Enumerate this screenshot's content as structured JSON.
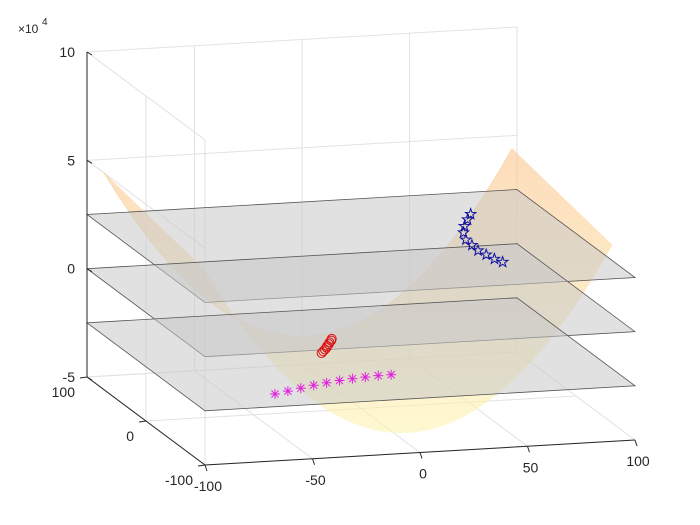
{
  "chart_data": {
    "type": "surface",
    "title": "",
    "xlabel": "",
    "ylabel": "",
    "zlabel": "",
    "x_ticks": [
      "-100",
      "-50",
      "0",
      "50",
      "100"
    ],
    "y_ticks": [
      "-100",
      "0",
      "100"
    ],
    "z_ticks": [
      "-5",
      "0",
      "5",
      "10"
    ],
    "z_exponent_label": "×10",
    "z_exponent_power": "4",
    "xlim": [
      -100,
      100
    ],
    "ylim": [
      -100,
      100
    ],
    "zlim": [
      -50000,
      100000
    ],
    "grid": true,
    "surface": {
      "function": "saddle",
      "colors": [
        "#fdf3b0",
        "#fbc58e"
      ],
      "opacity": 0.6
    },
    "planes": [
      {
        "z": 25000,
        "color": "#c8c8c8"
      },
      {
        "z": 0,
        "color": "#c8c8c8"
      },
      {
        "z": -25000,
        "color": "#c8c8c8"
      }
    ],
    "series": [
      {
        "marker": "star",
        "color": "#1010a0",
        "points": [
          [
            62,
            40,
            28000
          ],
          [
            60,
            38,
            26000
          ],
          [
            58,
            36,
            23500
          ],
          [
            57,
            34,
            21000
          ],
          [
            57,
            30,
            18500
          ],
          [
            59,
            27,
            16500
          ],
          [
            61,
            24,
            14500
          ],
          [
            64,
            21,
            13000
          ],
          [
            67,
            18,
            11500
          ],
          [
            70,
            15,
            10500
          ]
        ]
      },
      {
        "marker": "circle",
        "color": "#dd1111",
        "points": [
          [
            -15,
            -5,
            -16000
          ],
          [
            -15,
            -4,
            -17000
          ],
          [
            -15.5,
            -3,
            -18000
          ],
          [
            -15.5,
            -2,
            -19000
          ],
          [
            -16,
            -1,
            -20000
          ],
          [
            -16,
            0,
            -21000
          ],
          [
            -16.5,
            1,
            -22000
          ],
          [
            -17,
            2,
            -23000
          ],
          [
            -17.5,
            3,
            -24000
          ]
        ]
      },
      {
        "marker": "asterisk",
        "color": "#e020e0",
        "points": [
          [
            -40,
            0,
            -41000
          ],
          [
            -34,
            0,
            -40000
          ],
          [
            -28,
            0,
            -39000
          ],
          [
            -22,
            0,
            -38000
          ],
          [
            -16,
            0,
            -37200
          ],
          [
            -10,
            0,
            -36500
          ],
          [
            -4,
            0,
            -36000
          ],
          [
            2,
            0,
            -35600
          ],
          [
            8,
            0,
            -35300
          ],
          [
            14,
            0,
            -35200
          ]
        ]
      }
    ]
  }
}
